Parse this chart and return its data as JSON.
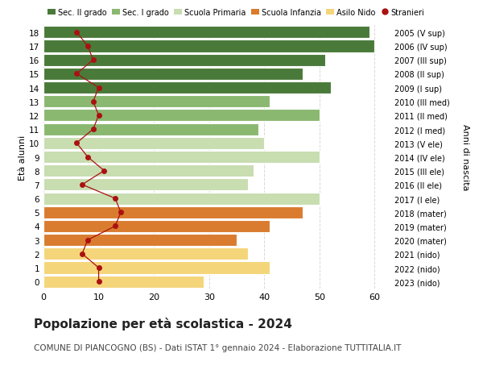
{
  "ages": [
    18,
    17,
    16,
    15,
    14,
    13,
    12,
    11,
    10,
    9,
    8,
    7,
    6,
    5,
    4,
    3,
    2,
    1,
    0
  ],
  "bar_values": [
    59,
    60,
    51,
    47,
    52,
    41,
    50,
    39,
    40,
    50,
    38,
    37,
    50,
    47,
    41,
    35,
    37,
    41,
    29
  ],
  "bar_colors": [
    "#4a7a3a",
    "#4a7a3a",
    "#4a7a3a",
    "#4a7a3a",
    "#4a7a3a",
    "#8ab870",
    "#8ab870",
    "#8ab870",
    "#c8ddb0",
    "#c8ddb0",
    "#c8ddb0",
    "#c8ddb0",
    "#c8ddb0",
    "#d97c30",
    "#d97c30",
    "#d97c30",
    "#f5d57a",
    "#f5d57a",
    "#f5d57a"
  ],
  "stranieri_values": [
    6,
    8,
    9,
    6,
    10,
    9,
    10,
    9,
    6,
    8,
    11,
    7,
    13,
    14,
    13,
    8,
    7,
    10,
    10
  ],
  "right_labels": [
    "2005 (V sup)",
    "2006 (IV sup)",
    "2007 (III sup)",
    "2008 (II sup)",
    "2009 (I sup)",
    "2010 (III med)",
    "2011 (II med)",
    "2012 (I med)",
    "2013 (V ele)",
    "2014 (IV ele)",
    "2015 (III ele)",
    "2016 (II ele)",
    "2017 (I ele)",
    "2018 (mater)",
    "2019 (mater)",
    "2020 (mater)",
    "2021 (nido)",
    "2022 (nido)",
    "2023 (nido)"
  ],
  "legend_labels": [
    "Sec. II grado",
    "Sec. I grado",
    "Scuola Primaria",
    "Scuola Infanzia",
    "Asilo Nido",
    "Stranieri"
  ],
  "legend_colors": [
    "#4a7a3a",
    "#8ab870",
    "#c8ddb0",
    "#d97c30",
    "#f5d57a",
    "#cc0000"
  ],
  "title": "Popolazione per età scolastica - 2024",
  "subtitle": "COMUNE DI PIANCOGNO (BS) - Dati ISTAT 1° gennaio 2024 - Elaborazione TUTTITALIA.IT",
  "ylabel_left": "Età alunni",
  "ylabel_right": "Anni di nascita",
  "xlim": [
    0,
    63
  ],
  "background_color": "#ffffff",
  "grid_color": "#d8d8d8",
  "stranieri_color": "#aa1111",
  "bar_edge_color": "#ffffff",
  "bar_height": 0.88
}
